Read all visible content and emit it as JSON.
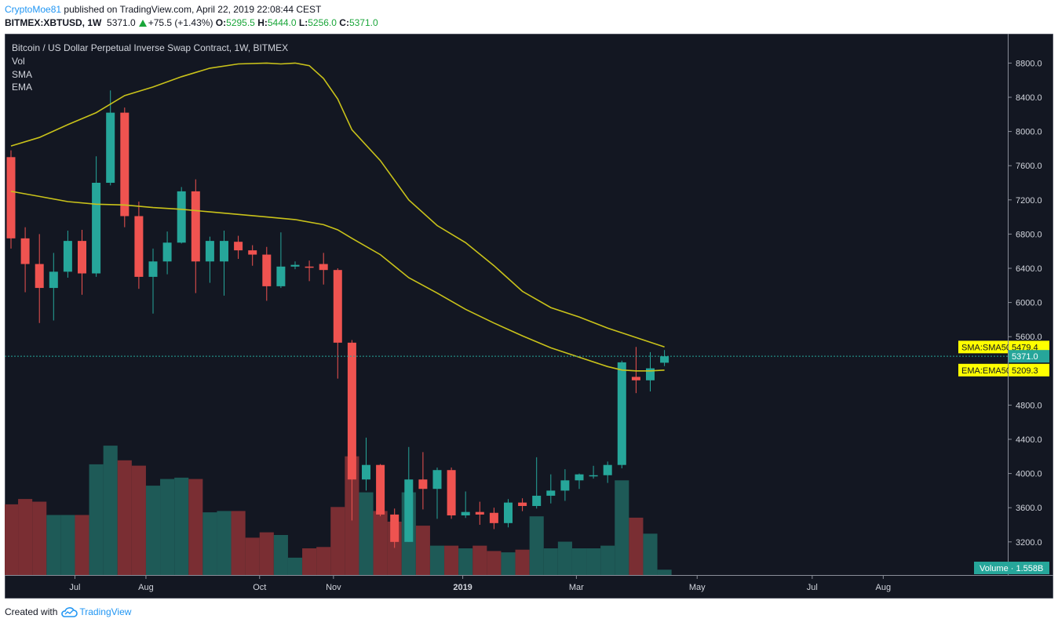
{
  "header": {
    "author": "CryptoMoe81",
    "published_text": "published on TradingView.com, April 22, 2019 22:08:44 CEST",
    "symbol": "BITMEX:XBTUSD, 1W",
    "last": "5371.0",
    "change": "+75.5 (+1.43%)",
    "open_label": "O:",
    "open": "5295.5",
    "high_label": "H:",
    "high": "5444.0",
    "low_label": "L:",
    "low": "5256.0",
    "close_label": "C:",
    "close": "5371.0"
  },
  "legend": {
    "title": "Bitcoin / US Dollar Perpetual Inverse Swap Contract, 1W, BITMEX",
    "items": [
      "Vol",
      "SMA",
      "EMA"
    ]
  },
  "footer": {
    "created_with": "Created with",
    "brand": "TradingView",
    "brand_icon": "tradingview-cloud-icon"
  },
  "colors": {
    "background": "#131722",
    "up": "#26a69a",
    "down": "#ef5350",
    "vol_up": "#1e5a57",
    "vol_down": "#7a2e33",
    "ma": "#c9c21a",
    "label_yellow": "#ffff00",
    "price_line": "#26a69a"
  },
  "chart_data": {
    "type": "candlestick",
    "title": "Bitcoin / US Dollar Perpetual Inverse Swap Contract, 1W, BITMEX",
    "interval": "1W",
    "y_axis": {
      "ticks": [
        "8800.0",
        "8400.0",
        "8000.0",
        "7600.0",
        "7200.0",
        "6800.0",
        "6400.0",
        "6000.0",
        "5600.0",
        "4800.0",
        "4400.0",
        "4000.0",
        "3600.0",
        "3200.0"
      ],
      "tick_values": [
        8800,
        8400,
        8000,
        7600,
        7200,
        6800,
        6400,
        6000,
        5600,
        4800,
        4400,
        4000,
        3600,
        3200
      ],
      "range": [
        2850,
        9000
      ]
    },
    "x_axis": {
      "labels": [
        "Jul",
        "Aug",
        "Oct",
        "Nov",
        "2019",
        "Mar",
        "May",
        "Jul",
        "Aug"
      ],
      "label_weeks": [
        4.5,
        9.5,
        17.5,
        22.7,
        31.8,
        39.8,
        48.3,
        56.4,
        61.4
      ]
    },
    "candles": [
      {
        "o": 7700,
        "h": 7780,
        "l": 6630,
        "c": 6750
      },
      {
        "o": 6750,
        "h": 6880,
        "l": 6120,
        "c": 6450
      },
      {
        "o": 6450,
        "h": 6800,
        "l": 5760,
        "c": 6170
      },
      {
        "o": 6170,
        "h": 6580,
        "l": 5790,
        "c": 6360
      },
      {
        "o": 6360,
        "h": 6840,
        "l": 6290,
        "c": 6720
      },
      {
        "o": 6720,
        "h": 6850,
        "l": 6090,
        "c": 6340
      },
      {
        "o": 6340,
        "h": 7710,
        "l": 6300,
        "c": 7400
      },
      {
        "o": 7400,
        "h": 8480,
        "l": 7370,
        "c": 8220
      },
      {
        "o": 8220,
        "h": 8280,
        "l": 6880,
        "c": 7010
      },
      {
        "o": 7010,
        "h": 7180,
        "l": 6160,
        "c": 6300
      },
      {
        "o": 6300,
        "h": 6630,
        "l": 5870,
        "c": 6480
      },
      {
        "o": 6480,
        "h": 6830,
        "l": 6330,
        "c": 6700
      },
      {
        "o": 6700,
        "h": 7350,
        "l": 6690,
        "c": 7300
      },
      {
        "o": 7300,
        "h": 7440,
        "l": 6110,
        "c": 6480
      },
      {
        "o": 6480,
        "h": 6770,
        "l": 6230,
        "c": 6720
      },
      {
        "o": 6480,
        "h": 6840,
        "l": 6080,
        "c": 6720
      },
      {
        "o": 6710,
        "h": 6780,
        "l": 6510,
        "c": 6610
      },
      {
        "o": 6610,
        "h": 6670,
        "l": 6430,
        "c": 6560
      },
      {
        "o": 6560,
        "h": 6650,
        "l": 6020,
        "c": 6190
      },
      {
        "o": 6190,
        "h": 6820,
        "l": 6170,
        "c": 6420
      },
      {
        "o": 6420,
        "h": 6480,
        "l": 6390,
        "c": 6440
      },
      {
        "o": 6420,
        "h": 6490,
        "l": 6250,
        "c": 6410
      },
      {
        "o": 6450,
        "h": 6580,
        "l": 6210,
        "c": 6380
      },
      {
        "o": 6380,
        "h": 6400,
        "l": 5110,
        "c": 5530
      },
      {
        "o": 5530,
        "h": 5560,
        "l": 3450,
        "c": 3930
      },
      {
        "o": 3930,
        "h": 4420,
        "l": 3800,
        "c": 4100
      },
      {
        "o": 4100,
        "h": 4110,
        "l": 3500,
        "c": 3520
      },
      {
        "o": 3520,
        "h": 3590,
        "l": 3130,
        "c": 3200
      },
      {
        "o": 3200,
        "h": 4310,
        "l": 3200,
        "c": 3930
      },
      {
        "o": 3930,
        "h": 4250,
        "l": 3580,
        "c": 3820
      },
      {
        "o": 3820,
        "h": 4070,
        "l": 3470,
        "c": 4040
      },
      {
        "o": 4040,
        "h": 4070,
        "l": 3470,
        "c": 3510
      },
      {
        "o": 3510,
        "h": 3790,
        "l": 3480,
        "c": 3550
      },
      {
        "o": 3550,
        "h": 3670,
        "l": 3400,
        "c": 3520
      },
      {
        "o": 3540,
        "h": 3600,
        "l": 3350,
        "c": 3420
      },
      {
        "o": 3420,
        "h": 3700,
        "l": 3370,
        "c": 3660
      },
      {
        "o": 3660,
        "h": 3710,
        "l": 3560,
        "c": 3620
      },
      {
        "o": 3620,
        "h": 4190,
        "l": 3590,
        "c": 3740
      },
      {
        "o": 3740,
        "h": 3990,
        "l": 3650,
        "c": 3800
      },
      {
        "o": 3800,
        "h": 4050,
        "l": 3680,
        "c": 3920
      },
      {
        "o": 3920,
        "h": 4000,
        "l": 3820,
        "c": 3990
      },
      {
        "o": 3980,
        "h": 4090,
        "l": 3940,
        "c": 3980
      },
      {
        "o": 3980,
        "h": 4140,
        "l": 3890,
        "c": 4100
      },
      {
        "o": 4100,
        "h": 5320,
        "l": 4060,
        "c": 5300
      },
      {
        "o": 5130,
        "h": 5480,
        "l": 4940,
        "c": 5090
      },
      {
        "o": 5090,
        "h": 5420,
        "l": 4960,
        "c": 5230
      },
      {
        "o": 5295.5,
        "h": 5444,
        "l": 5256,
        "c": 5371
      }
    ],
    "volume_series": {
      "name": "Volume",
      "last_label": "1.558B",
      "relative_values": [
        0.53,
        0.57,
        0.55,
        0.45,
        0.45,
        0.45,
        0.83,
        0.97,
        0.86,
        0.82,
        0.67,
        0.72,
        0.73,
        0.72,
        0.47,
        0.48,
        0.48,
        0.28,
        0.32,
        0.3,
        0.13,
        0.2,
        0.21,
        0.51,
        0.89,
        0.62,
        0.48,
        0.4,
        0.62,
        0.37,
        0.22,
        0.22,
        0.2,
        0.22,
        0.18,
        0.17,
        0.19,
        0.44,
        0.2,
        0.25,
        0.2,
        0.2,
        0.22,
        0.71,
        0.43,
        0.31,
        0.04
      ]
    },
    "series": [
      {
        "name": "SMA:SMA50",
        "last_label": "5479.4",
        "points": [
          [
            0,
            7830
          ],
          [
            2,
            7930
          ],
          [
            4,
            8080
          ],
          [
            6,
            8220
          ],
          [
            8,
            8420
          ],
          [
            10,
            8520
          ],
          [
            12,
            8640
          ],
          [
            14,
            8740
          ],
          [
            16,
            8790
          ],
          [
            18,
            8800
          ],
          [
            19,
            8790
          ],
          [
            20,
            8800
          ],
          [
            21,
            8770
          ],
          [
            22,
            8620
          ],
          [
            23,
            8380
          ],
          [
            24,
            8020
          ],
          [
            26,
            7660
          ],
          [
            28,
            7200
          ],
          [
            30,
            6900
          ],
          [
            32,
            6700
          ],
          [
            34,
            6430
          ],
          [
            36,
            6130
          ],
          [
            38,
            5940
          ],
          [
            40,
            5830
          ],
          [
            42,
            5700
          ],
          [
            44,
            5590
          ],
          [
            46,
            5479.4
          ]
        ]
      },
      {
        "name": "EMA:EMA50",
        "last_label": "5209.3",
        "points": [
          [
            0,
            7300
          ],
          [
            2,
            7240
          ],
          [
            4,
            7180
          ],
          [
            6,
            7150
          ],
          [
            8,
            7140
          ],
          [
            10,
            7110
          ],
          [
            12,
            7090
          ],
          [
            14,
            7060
          ],
          [
            16,
            7030
          ],
          [
            18,
            7000
          ],
          [
            20,
            6970
          ],
          [
            22,
            6910
          ],
          [
            23,
            6850
          ],
          [
            24,
            6750
          ],
          [
            26,
            6560
          ],
          [
            28,
            6290
          ],
          [
            30,
            6110
          ],
          [
            32,
            5920
          ],
          [
            34,
            5760
          ],
          [
            36,
            5610
          ],
          [
            38,
            5470
          ],
          [
            40,
            5360
          ],
          [
            42,
            5250
          ],
          [
            43,
            5210
          ],
          [
            44,
            5200
          ],
          [
            45,
            5200
          ],
          [
            46,
            5209.3
          ]
        ]
      },
      {
        "name": "Last price",
        "last_label": "5371.0",
        "value": 5371
      }
    ]
  }
}
